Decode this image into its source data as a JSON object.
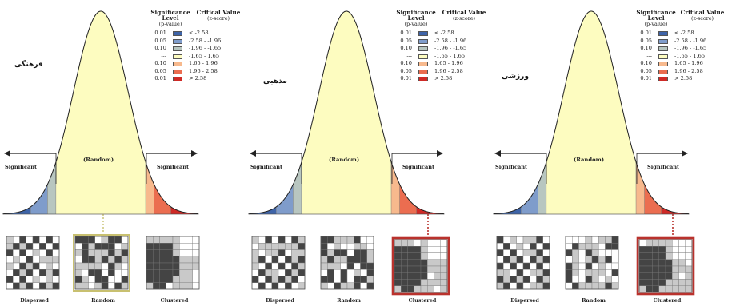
{
  "legend": {
    "header_p": "Significance Level",
    "header_p_sub": "(p-value)",
    "header_z": "Critical Value",
    "header_z_sub": "(z-score)",
    "rows": [
      {
        "p": "0.01",
        "z": "< -2.58",
        "color": "#3e64a8"
      },
      {
        "p": "0.05",
        "z": "-2.58 - -1.96",
        "color": "#7f9ccb"
      },
      {
        "p": "0.10",
        "z": "-1.96 - -1.65",
        "color": "#b8c6c0"
      },
      {
        "p": "---",
        "z": "-1.65 - 1.65",
        "color": "#fdfcc0"
      },
      {
        "p": "0.10",
        "z": "1.65 - 1.96",
        "color": "#f7b98d"
      },
      {
        "p": "0.05",
        "z": "1.96 - 2.58",
        "color": "#eb6d50"
      },
      {
        "p": "0.01",
        "z": "> 2.58",
        "color": "#cf2a26"
      }
    ]
  },
  "labels": {
    "significant": "Significant",
    "random": "(Random)"
  },
  "maps": {
    "dispersed": "Dispersed",
    "random": "Random",
    "clustered": "Clustered"
  },
  "panels": [
    {
      "title": "فرهنگی",
      "highlight": "random",
      "highlight_color": "#c8c070"
    },
    {
      "title": "مذهبی",
      "highlight": "clustered",
      "highlight_color": "#b9322d"
    },
    {
      "title": "ورزشی",
      "highlight": "clustered",
      "highlight_color": "#b9322d"
    }
  ]
}
